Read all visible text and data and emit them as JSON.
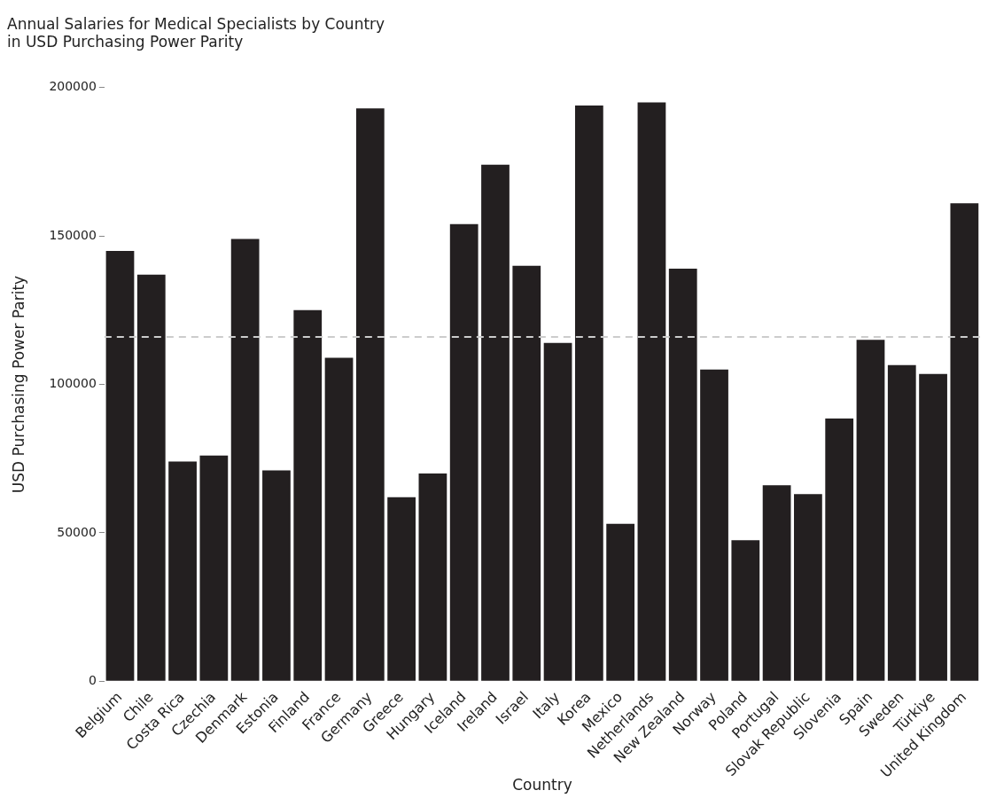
{
  "chart_data": {
    "type": "bar",
    "title": "Annual Salaries for Medical Specialists by Country\nin USD Purchasing Power Parity",
    "xlabel": "Country",
    "ylabel": "USD Purchasing Power Parity",
    "categories": [
      "Belgium",
      "Chile",
      "Costa Rica",
      "Czechia",
      "Denmark",
      "Estonia",
      "Finland",
      "France",
      "Germany",
      "Greece",
      "Hungary",
      "Iceland",
      "Ireland",
      "Israel",
      "Italy",
      "Korea",
      "Mexico",
      "Netherlands",
      "New Zealand",
      "Norway",
      "Poland",
      "Portugal",
      "Slovak Republic",
      "Slovenia",
      "Spain",
      "Sweden",
      "Türkiye",
      "United Kingdom"
    ],
    "values": [
      145000,
      137000,
      74000,
      76000,
      149000,
      71000,
      125000,
      109000,
      193000,
      62000,
      70000,
      154000,
      174000,
      140000,
      114000,
      194000,
      53000,
      195000,
      139000,
      105000,
      47500,
      66000,
      63000,
      88500,
      115000,
      106500,
      103500,
      161000
    ],
    "color": "#231f20",
    "ylim": [
      0,
      200000
    ],
    "yticks": [
      0,
      50000,
      100000,
      150000,
      200000
    ],
    "grid": false,
    "legend": false,
    "ref_lines": [
      {
        "axis": "y",
        "value": 116000,
        "color": "#cccccc",
        "line_style": "dashed"
      }
    ]
  }
}
